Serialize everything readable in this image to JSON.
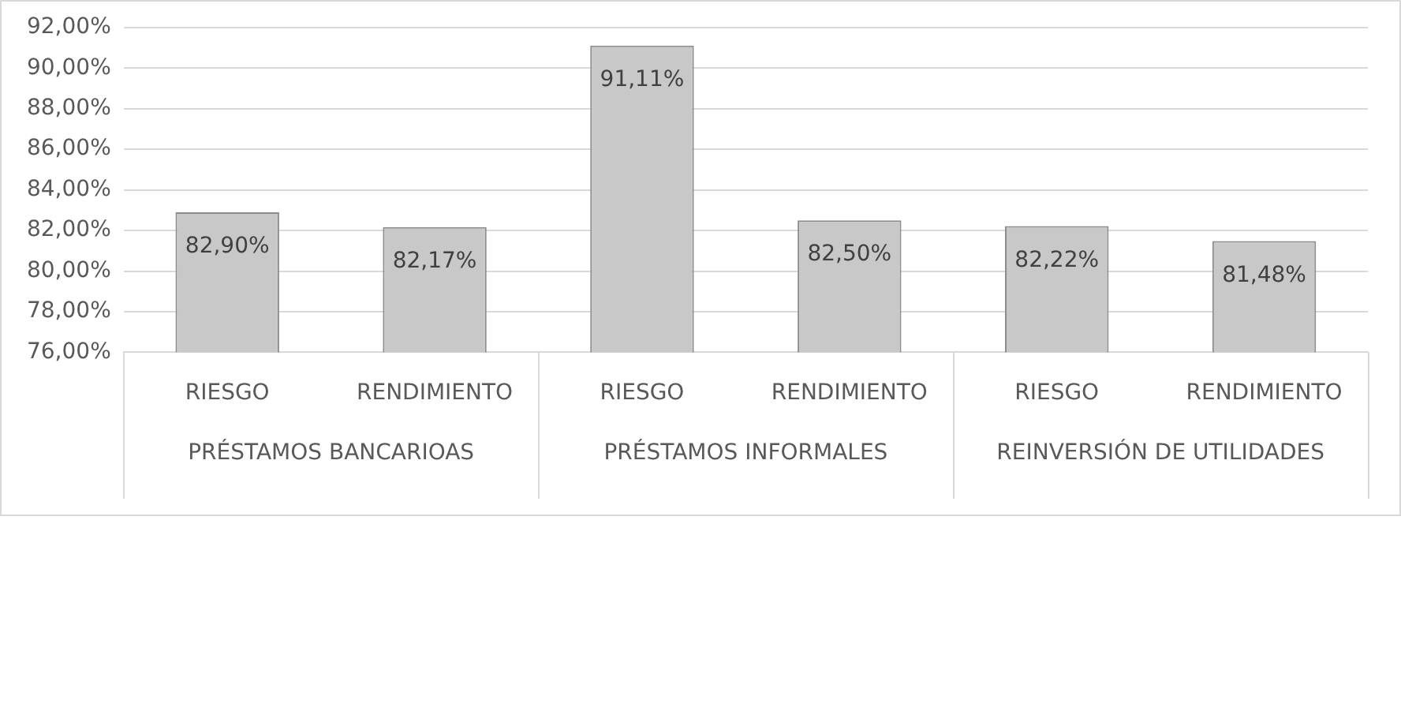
{
  "chart_data": {
    "type": "bar",
    "categories": [
      "RIESGO",
      "RENDIMIENTO",
      "RIESGO",
      "RENDIMIENTO",
      "RIESGO",
      "RENDIMIENTO"
    ],
    "values": [
      82.9,
      82.17,
      91.11,
      82.5,
      82.22,
      81.48
    ],
    "value_labels": [
      "82,90%",
      "82,17%",
      "91,11%",
      "82,50%",
      "82,22%",
      "81,48%"
    ],
    "color": "#c8c8c8",
    "ylim": [
      76,
      92
    ],
    "yticks": [
      {
        "value": 76,
        "label": "76,00%"
      },
      {
        "value": 78,
        "label": "78,00%"
      },
      {
        "value": 80,
        "label": "80,00%"
      },
      {
        "value": 82,
        "label": "82,00%"
      },
      {
        "value": 84,
        "label": "84,00%"
      },
      {
        "value": 86,
        "label": "86,00%"
      },
      {
        "value": 88,
        "label": "88,00%"
      },
      {
        "value": 90,
        "label": "90,00%"
      },
      {
        "value": 92,
        "label": "92,00%"
      }
    ],
    "annotations": [
      "PRÉSTAMOS BANCARIOAS",
      "PRÉSTAMOS INFORMALES",
      "REINVERSIÓN DE UTILIDADES"
    ],
    "grid": "y",
    "legend": false
  }
}
